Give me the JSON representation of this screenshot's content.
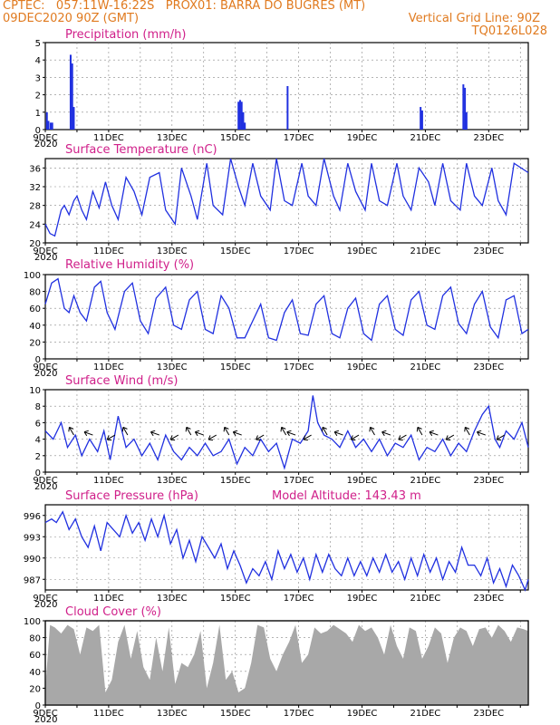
{
  "header": {
    "line1_left": "CPTEC:   057:11W-16:22S   PROX01: BARRA DO BUGRES (MT)",
    "line2_left": "09DEC2020 90Z (GMT)",
    "line2_right": "Vertical Grid Line: 90Z",
    "line3_right": "TQ0126L028"
  },
  "colors": {
    "header": "#e07a1f",
    "title": "#d0208a",
    "line": "#2030e0",
    "cloud": "#a8a8a8"
  },
  "x_axis": {
    "labels": [
      "9DEC",
      "11DEC",
      "13DEC",
      "15DEC",
      "17DEC",
      "19DEC",
      "21DEC",
      "23DEC"
    ],
    "label_days": [
      9,
      11,
      13,
      15,
      17,
      19,
      21,
      23
    ],
    "range_days": [
      9,
      24.25
    ],
    "cut_label": "2020"
  },
  "chart_data": [
    {
      "id": "precip",
      "type": "bar",
      "title": "Precipitation (mm/h)",
      "ylim": [
        0,
        5
      ],
      "yticks": [
        0,
        1,
        2,
        3,
        4,
        5
      ],
      "x": [
        9.05,
        9.1,
        9.17,
        9.22,
        9.8,
        9.85,
        9.9,
        15.1,
        15.15,
        15.2,
        15.25,
        15.3,
        16.65,
        20.85,
        20.9,
        22.2,
        22.25,
        22.3
      ],
      "values": [
        1.0,
        0.5,
        0.4,
        0.4,
        4.3,
        3.8,
        1.3,
        1.6,
        1.7,
        1.6,
        1.0,
        0.4,
        2.5,
        1.3,
        1.1,
        2.6,
        2.4,
        1.0
      ]
    },
    {
      "id": "temp",
      "type": "line",
      "title": "Surface Temperature (nC)",
      "ylim": [
        20,
        38
      ],
      "yticks": [
        20,
        24,
        28,
        32,
        36
      ],
      "x": [
        9.0,
        9.15,
        9.3,
        9.5,
        9.6,
        9.75,
        9.9,
        10.0,
        10.15,
        10.3,
        10.5,
        10.7,
        10.9,
        11.1,
        11.3,
        11.55,
        11.8,
        12.05,
        12.3,
        12.6,
        12.8,
        13.1,
        13.3,
        13.6,
        13.8,
        14.1,
        14.3,
        14.6,
        14.85,
        15.1,
        15.3,
        15.55,
        15.8,
        16.1,
        16.3,
        16.55,
        16.8,
        17.1,
        17.3,
        17.55,
        17.8,
        18.1,
        18.3,
        18.55,
        18.8,
        19.1,
        19.3,
        19.55,
        19.8,
        20.1,
        20.3,
        20.55,
        20.8,
        21.1,
        21.3,
        21.55,
        21.8,
        22.1,
        22.3,
        22.55,
        22.8,
        23.1,
        23.3,
        23.55,
        23.8,
        24.25
      ],
      "values": [
        24,
        22,
        21.5,
        27,
        28,
        26,
        29,
        30,
        27,
        25,
        31,
        27.5,
        33,
        28,
        25,
        34,
        31,
        26,
        34,
        35,
        27,
        24,
        36,
        30,
        25,
        37,
        28,
        26,
        38,
        32,
        28,
        37,
        30,
        27,
        38,
        29,
        28,
        37,
        30,
        28,
        38,
        30,
        27,
        37,
        31,
        27,
        37,
        29,
        28,
        37,
        30,
        27,
        36,
        33,
        28,
        37,
        29,
        27,
        37,
        30,
        28,
        36,
        29,
        26,
        37,
        35
      ]
    },
    {
      "id": "rh",
      "type": "line",
      "title": "Relative Humidity (%)",
      "ylim": [
        0,
        100
      ],
      "yticks": [
        0,
        20,
        40,
        60,
        80,
        100
      ],
      "x": [
        9.0,
        9.2,
        9.4,
        9.6,
        9.75,
        9.9,
        10.1,
        10.3,
        10.55,
        10.75,
        10.95,
        11.2,
        11.5,
        11.75,
        12.0,
        12.25,
        12.5,
        12.8,
        13.05,
        13.3,
        13.55,
        13.8,
        14.05,
        14.3,
        14.55,
        14.8,
        15.05,
        15.3,
        15.55,
        15.8,
        16.05,
        16.3,
        16.55,
        16.8,
        17.05,
        17.3,
        17.55,
        17.8,
        18.05,
        18.3,
        18.55,
        18.8,
        19.05,
        19.3,
        19.55,
        19.8,
        20.05,
        20.3,
        20.55,
        20.8,
        21.05,
        21.3,
        21.55,
        21.8,
        22.05,
        22.3,
        22.55,
        22.8,
        23.05,
        23.3,
        23.55,
        23.8,
        24.05,
        24.25
      ],
      "values": [
        65,
        90,
        95,
        60,
        55,
        75,
        55,
        45,
        85,
        92,
        55,
        35,
        80,
        90,
        45,
        30,
        72,
        85,
        40,
        35,
        70,
        80,
        35,
        30,
        75,
        60,
        25,
        25,
        45,
        65,
        25,
        22,
        55,
        70,
        30,
        28,
        65,
        75,
        30,
        25,
        60,
        72,
        30,
        22,
        65,
        75,
        35,
        28,
        70,
        80,
        40,
        35,
        75,
        85,
        42,
        30,
        65,
        80,
        38,
        25,
        70,
        75,
        30,
        35
      ]
    },
    {
      "id": "wind",
      "type": "line",
      "title": "Surface Wind (m/s)",
      "ylim": [
        0,
        10
      ],
      "yticks": [
        0,
        2,
        4,
        6,
        8,
        10
      ],
      "x": [
        9.0,
        9.25,
        9.5,
        9.7,
        9.95,
        10.15,
        10.4,
        10.65,
        10.85,
        11.05,
        11.3,
        11.55,
        11.8,
        12.05,
        12.3,
        12.55,
        12.8,
        13.05,
        13.3,
        13.55,
        13.8,
        14.05,
        14.3,
        14.55,
        14.8,
        15.05,
        15.3,
        15.55,
        15.8,
        16.05,
        16.3,
        16.55,
        16.8,
        17.05,
        17.3,
        17.45,
        17.6,
        17.8,
        18.05,
        18.3,
        18.55,
        18.8,
        19.05,
        19.3,
        19.55,
        19.8,
        20.05,
        20.3,
        20.55,
        20.8,
        21.05,
        21.3,
        21.55,
        21.8,
        22.05,
        22.3,
        22.55,
        22.8,
        23.0,
        23.2,
        23.35,
        23.55,
        23.8,
        24.05,
        24.25
      ],
      "values": [
        5,
        4,
        6,
        3,
        4.5,
        2,
        4,
        2.5,
        5,
        1.5,
        6.8,
        3,
        4,
        2,
        3.5,
        1.5,
        4.5,
        2.5,
        1.5,
        3,
        2,
        3.5,
        2,
        2.5,
        4,
        1,
        3,
        2,
        4,
        2.5,
        3.5,
        0.5,
        4,
        3.5,
        5,
        9.3,
        6,
        4.5,
        4,
        3,
        5,
        3,
        4,
        2.5,
        4,
        2,
        3.5,
        3,
        4.5,
        1.5,
        3,
        2.5,
        4,
        2,
        3.5,
        2.5,
        5,
        7,
        8,
        4,
        3,
        5,
        4,
        6,
        3
      ],
      "arrows_at": [
        9.9,
        10.5,
        11.2,
        11.6,
        12.6,
        13.2,
        13.6,
        14.0,
        14.4,
        14.8,
        15.2,
        15.9,
        16.6,
        16.9,
        17.4,
        17.9,
        18.4,
        18.9,
        19.4,
        19.9,
        20.4,
        20.9,
        21.4,
        21.9,
        22.4,
        22.9,
        23.5
      ]
    },
    {
      "id": "pres",
      "type": "line",
      "title": "Surface Pressure (hPa)",
      "annotation": "Model Altitude: 143.43 m",
      "ylim": [
        985.5,
        997.5
      ],
      "yticks": [
        987,
        990,
        993,
        996
      ],
      "x": [
        9.0,
        9.2,
        9.35,
        9.55,
        9.75,
        9.95,
        10.15,
        10.35,
        10.55,
        10.75,
        10.95,
        11.15,
        11.35,
        11.55,
        11.75,
        11.95,
        12.15,
        12.35,
        12.55,
        12.75,
        12.95,
        13.15,
        13.35,
        13.55,
        13.75,
        13.95,
        14.15,
        14.35,
        14.55,
        14.75,
        14.95,
        15.15,
        15.35,
        15.55,
        15.75,
        15.95,
        16.15,
        16.35,
        16.55,
        16.75,
        16.95,
        17.15,
        17.35,
        17.55,
        17.75,
        17.95,
        18.15,
        18.35,
        18.55,
        18.75,
        18.95,
        19.15,
        19.35,
        19.55,
        19.75,
        19.95,
        20.15,
        20.35,
        20.55,
        20.75,
        20.95,
        21.15,
        21.35,
        21.55,
        21.75,
        21.95,
        22.15,
        22.35,
        22.55,
        22.75,
        22.95,
        23.15,
        23.35,
        23.55,
        23.75,
        23.95,
        24.15,
        24.25
      ],
      "values": [
        995,
        995.5,
        995,
        996.5,
        994,
        995.5,
        993,
        991.5,
        994.5,
        991,
        995,
        994,
        993,
        996,
        993.5,
        995,
        992.5,
        995.5,
        993,
        996,
        992,
        994,
        990,
        992.5,
        989.5,
        993,
        991.5,
        990,
        992,
        988.5,
        991,
        989,
        986.5,
        988.5,
        987.5,
        989.5,
        987,
        991,
        988.5,
        990.5,
        988,
        990,
        987,
        990.5,
        988,
        990.5,
        988.5,
        987.5,
        990,
        987.5,
        989.5,
        987.5,
        990,
        988,
        990.5,
        988,
        989.5,
        987,
        990,
        987.5,
        990.5,
        988,
        990,
        987,
        989.5,
        988,
        991.5,
        989,
        989,
        987.5,
        990,
        986.5,
        988.5,
        986,
        989,
        987.5,
        985.5,
        987
      ]
    },
    {
      "id": "cloud",
      "type": "area",
      "title": "Cloud Cover (%)",
      "ylim": [
        0,
        100
      ],
      "yticks": [
        0,
        20,
        40,
        60,
        80,
        100
      ],
      "x": [
        9.0,
        9.15,
        9.3,
        9.5,
        9.7,
        9.9,
        10.1,
        10.3,
        10.5,
        10.7,
        10.9,
        11.1,
        11.3,
        11.5,
        11.7,
        11.9,
        12.1,
        12.3,
        12.5,
        12.7,
        12.9,
        13.1,
        13.3,
        13.5,
        13.7,
        13.9,
        14.1,
        14.3,
        14.5,
        14.7,
        14.9,
        15.1,
        15.3,
        15.5,
        15.7,
        15.9,
        16.1,
        16.3,
        16.5,
        16.7,
        16.9,
        17.1,
        17.3,
        17.5,
        17.7,
        17.9,
        18.1,
        18.3,
        18.5,
        18.7,
        18.9,
        19.1,
        19.3,
        19.5,
        19.7,
        19.9,
        20.1,
        20.3,
        20.5,
        20.7,
        20.9,
        21.1,
        21.3,
        21.5,
        21.7,
        21.9,
        22.1,
        22.3,
        22.5,
        22.7,
        22.9,
        23.1,
        23.3,
        23.5,
        23.7,
        23.9,
        24.1,
        24.25
      ],
      "values": [
        20,
        95,
        92,
        85,
        95,
        90,
        60,
        92,
        88,
        95,
        15,
        30,
        75,
        95,
        55,
        88,
        45,
        30,
        80,
        40,
        92,
        25,
        50,
        45,
        60,
        88,
        20,
        50,
        95,
        30,
        40,
        15,
        20,
        50,
        95,
        92,
        55,
        40,
        60,
        75,
        95,
        50,
        60,
        92,
        85,
        88,
        95,
        90,
        85,
        75,
        95,
        88,
        92,
        80,
        60,
        95,
        70,
        55,
        92,
        88,
        55,
        70,
        92,
        85,
        50,
        80,
        92,
        88,
        70,
        90,
        92,
        80,
        95,
        88,
        75,
        92,
        90,
        88
      ]
    }
  ]
}
